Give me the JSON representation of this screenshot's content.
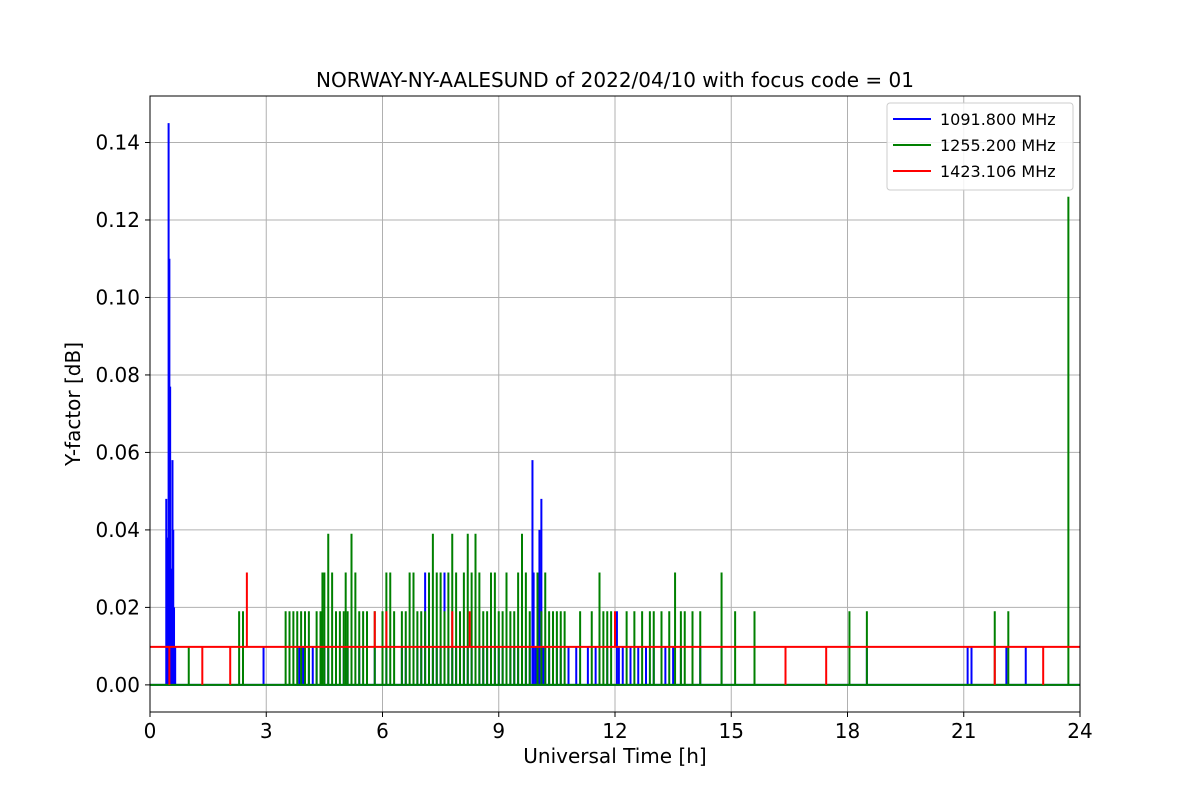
{
  "chart_data": {
    "type": "line",
    "title": "NORWAY-NY-AALESUND of 2022/04/10 with focus code = 01",
    "xlabel": "Universal Time [h]",
    "ylabel": "Y-factor [dB]",
    "xlim": [
      0,
      24
    ],
    "ylim": [
      -0.007,
      0.152
    ],
    "x_ticks": [
      0,
      3,
      6,
      9,
      12,
      15,
      18,
      21,
      24
    ],
    "x_tick_labels": [
      "0",
      "3",
      "6",
      "9",
      "12",
      "15",
      "18",
      "21",
      "24"
    ],
    "y_ticks": [
      0.0,
      0.02,
      0.04,
      0.06,
      0.08,
      0.1,
      0.12,
      0.14
    ],
    "y_tick_labels": [
      "0.00",
      "0.02",
      "0.04",
      "0.06",
      "0.08",
      "0.10",
      "0.12",
      "0.14"
    ],
    "grid": true,
    "legend_position": "top-right",
    "series": [
      {
        "name": "1091.800 MHz",
        "color": "#0000ff",
        "baseline": 0.0,
        "spikes": [
          [
            0.42,
            0.048
          ],
          [
            0.45,
            0.038
          ],
          [
            0.48,
            0.145
          ],
          [
            0.5,
            0.11
          ],
          [
            0.52,
            0.077
          ],
          [
            0.55,
            0.03
          ],
          [
            0.58,
            0.058
          ],
          [
            0.6,
            0.04
          ],
          [
            0.62,
            0.02
          ],
          [
            0.65,
            0.01
          ],
          [
            2.93,
            0.01
          ],
          [
            3.85,
            0.01
          ],
          [
            3.9,
            0.01
          ],
          [
            3.95,
            0.01
          ],
          [
            4.0,
            0.01
          ],
          [
            4.1,
            0.01
          ],
          [
            4.2,
            0.01
          ],
          [
            4.3,
            0.01
          ],
          [
            4.4,
            0.01
          ],
          [
            4.5,
            0.01
          ],
          [
            4.6,
            0.01
          ],
          [
            4.8,
            0.01
          ],
          [
            5.0,
            0.01
          ],
          [
            5.1,
            0.01
          ],
          [
            5.2,
            0.01
          ],
          [
            5.4,
            0.01
          ],
          [
            5.6,
            0.01
          ],
          [
            5.8,
            0.01
          ],
          [
            6.0,
            0.01
          ],
          [
            6.1,
            0.01
          ],
          [
            6.5,
            0.01
          ],
          [
            6.6,
            0.01
          ],
          [
            6.8,
            0.01
          ],
          [
            6.9,
            0.01
          ],
          [
            7.0,
            0.01
          ],
          [
            7.1,
            0.029
          ],
          [
            7.2,
            0.01
          ],
          [
            7.3,
            0.01
          ],
          [
            7.4,
            0.01
          ],
          [
            7.5,
            0.01
          ],
          [
            7.6,
            0.029
          ],
          [
            7.7,
            0.01
          ],
          [
            7.8,
            0.01
          ],
          [
            7.9,
            0.01
          ],
          [
            8.0,
            0.01
          ],
          [
            8.1,
            0.01
          ],
          [
            8.2,
            0.01
          ],
          [
            8.3,
            0.01
          ],
          [
            8.4,
            0.01
          ],
          [
            8.5,
            0.01
          ],
          [
            8.6,
            0.01
          ],
          [
            8.7,
            0.01
          ],
          [
            8.8,
            0.01
          ],
          [
            8.9,
            0.01
          ],
          [
            9.0,
            0.01
          ],
          [
            9.1,
            0.01
          ],
          [
            9.2,
            0.029
          ],
          [
            9.3,
            0.01
          ],
          [
            9.4,
            0.01
          ],
          [
            9.5,
            0.01
          ],
          [
            9.6,
            0.01
          ],
          [
            9.7,
            0.01
          ],
          [
            9.8,
            0.01
          ],
          [
            9.87,
            0.058
          ],
          [
            9.9,
            0.029
          ],
          [
            9.95,
            0.01
          ],
          [
            10.0,
            0.01
          ],
          [
            10.05,
            0.04
          ],
          [
            10.1,
            0.048
          ],
          [
            10.15,
            0.01
          ],
          [
            10.2,
            0.01
          ],
          [
            10.3,
            0.01
          ],
          [
            10.4,
            0.01
          ],
          [
            10.5,
            0.01
          ],
          [
            10.6,
            0.01
          ],
          [
            10.8,
            0.01
          ],
          [
            11.0,
            0.01
          ],
          [
            11.3,
            0.01
          ],
          [
            11.5,
            0.01
          ],
          [
            11.8,
            0.01
          ],
          [
            12.05,
            0.019
          ],
          [
            12.1,
            0.01
          ],
          [
            12.2,
            0.01
          ],
          [
            12.4,
            0.01
          ],
          [
            12.6,
            0.01
          ],
          [
            12.8,
            0.01
          ],
          [
            13.0,
            0.01
          ],
          [
            13.3,
            0.01
          ],
          [
            13.5,
            0.01
          ],
          [
            13.7,
            0.01
          ],
          [
            14.0,
            0.01
          ],
          [
            14.2,
            0.01
          ],
          [
            14.75,
            0.01
          ],
          [
            18.5,
            0.01
          ],
          [
            21.1,
            0.01
          ],
          [
            21.2,
            0.01
          ],
          [
            22.1,
            0.01
          ],
          [
            22.6,
            0.01
          ]
        ]
      },
      {
        "name": "1255.200 MHz",
        "color": "#008000",
        "baseline": 0.0,
        "spikes": [
          [
            1.0,
            0.01
          ],
          [
            2.3,
            0.019
          ],
          [
            2.4,
            0.019
          ],
          [
            3.5,
            0.019
          ],
          [
            3.6,
            0.019
          ],
          [
            3.7,
            0.019
          ],
          [
            3.8,
            0.019
          ],
          [
            3.9,
            0.019
          ],
          [
            4.0,
            0.019
          ],
          [
            4.1,
            0.019
          ],
          [
            4.3,
            0.019
          ],
          [
            4.4,
            0.019
          ],
          [
            4.45,
            0.029
          ],
          [
            4.5,
            0.029
          ],
          [
            4.6,
            0.039
          ],
          [
            4.7,
            0.029
          ],
          [
            4.8,
            0.019
          ],
          [
            4.9,
            0.019
          ],
          [
            5.0,
            0.019
          ],
          [
            5.05,
            0.029
          ],
          [
            5.1,
            0.019
          ],
          [
            5.2,
            0.039
          ],
          [
            5.3,
            0.029
          ],
          [
            5.4,
            0.019
          ],
          [
            5.5,
            0.019
          ],
          [
            5.6,
            0.019
          ],
          [
            5.8,
            0.019
          ],
          [
            6.0,
            0.019
          ],
          [
            6.1,
            0.029
          ],
          [
            6.2,
            0.029
          ],
          [
            6.3,
            0.019
          ],
          [
            6.5,
            0.019
          ],
          [
            6.6,
            0.019
          ],
          [
            6.7,
            0.029
          ],
          [
            6.8,
            0.029
          ],
          [
            6.9,
            0.019
          ],
          [
            7.0,
            0.019
          ],
          [
            7.1,
            0.019
          ],
          [
            7.2,
            0.029
          ],
          [
            7.3,
            0.039
          ],
          [
            7.4,
            0.029
          ],
          [
            7.5,
            0.029
          ],
          [
            7.6,
            0.019
          ],
          [
            7.7,
            0.029
          ],
          [
            7.8,
            0.039
          ],
          [
            7.9,
            0.029
          ],
          [
            8.0,
            0.019
          ],
          [
            8.1,
            0.029
          ],
          [
            8.2,
            0.039
          ],
          [
            8.3,
            0.029
          ],
          [
            8.4,
            0.039
          ],
          [
            8.5,
            0.029
          ],
          [
            8.6,
            0.019
          ],
          [
            8.7,
            0.019
          ],
          [
            8.8,
            0.029
          ],
          [
            8.9,
            0.029
          ],
          [
            9.0,
            0.019
          ],
          [
            9.1,
            0.019
          ],
          [
            9.2,
            0.029
          ],
          [
            9.3,
            0.019
          ],
          [
            9.4,
            0.019
          ],
          [
            9.5,
            0.029
          ],
          [
            9.6,
            0.039
          ],
          [
            9.7,
            0.029
          ],
          [
            9.8,
            0.019
          ],
          [
            10.0,
            0.029
          ],
          [
            10.1,
            0.019
          ],
          [
            10.2,
            0.029
          ],
          [
            10.3,
            0.019
          ],
          [
            10.4,
            0.019
          ],
          [
            10.5,
            0.019
          ],
          [
            10.6,
            0.019
          ],
          [
            10.7,
            0.019
          ],
          [
            11.1,
            0.019
          ],
          [
            11.4,
            0.019
          ],
          [
            11.6,
            0.029
          ],
          [
            11.7,
            0.019
          ],
          [
            11.8,
            0.019
          ],
          [
            11.9,
            0.019
          ],
          [
            12.3,
            0.019
          ],
          [
            12.5,
            0.019
          ],
          [
            12.7,
            0.019
          ],
          [
            12.9,
            0.019
          ],
          [
            13.0,
            0.019
          ],
          [
            13.2,
            0.019
          ],
          [
            13.4,
            0.019
          ],
          [
            13.55,
            0.029
          ],
          [
            13.7,
            0.019
          ],
          [
            13.8,
            0.019
          ],
          [
            14.0,
            0.019
          ],
          [
            14.2,
            0.019
          ],
          [
            14.75,
            0.029
          ],
          [
            15.1,
            0.019
          ],
          [
            15.6,
            0.019
          ],
          [
            18.05,
            0.019
          ],
          [
            18.5,
            0.019
          ],
          [
            21.8,
            0.019
          ],
          [
            22.15,
            0.019
          ],
          [
            23.7,
            0.126
          ]
        ]
      },
      {
        "name": "1423.106 MHz",
        "color": "#ff0000",
        "baseline": 0.0098,
        "spikes": [
          [
            0.5,
            0.0
          ],
          [
            1.35,
            0.0
          ],
          [
            2.07,
            0.0
          ],
          [
            2.5,
            0.029
          ],
          [
            5.8,
            0.019
          ],
          [
            6.1,
            0.019
          ],
          [
            7.8,
            0.019
          ],
          [
            8.25,
            0.019
          ],
          [
            12.0,
            0.019
          ],
          [
            16.4,
            0.0
          ],
          [
            17.45,
            0.0
          ],
          [
            21.8,
            0.0
          ],
          [
            23.05,
            0.0
          ]
        ]
      }
    ]
  }
}
